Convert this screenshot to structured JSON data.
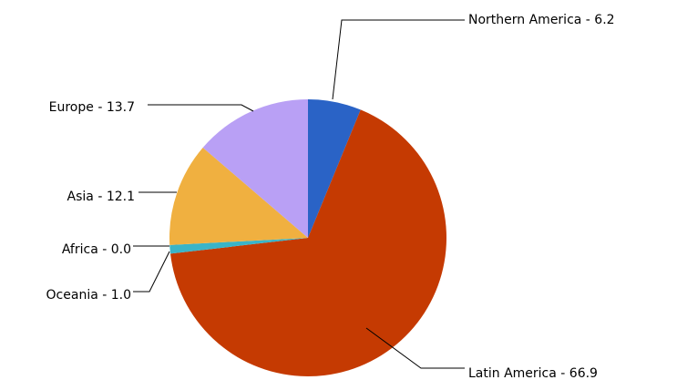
{
  "chart_data": {
    "type": "pie",
    "title": "",
    "slices": [
      {
        "label": "Northern America - 6.2",
        "category": "Northern America",
        "value": 6.2,
        "color": "#2a63c6"
      },
      {
        "label": "Latin America - 66.9",
        "category": "Latin America",
        "value": 66.9,
        "color": "#c53a02"
      },
      {
        "label": "Oceania - 1.0",
        "category": "Oceania",
        "value": 1.0,
        "color": "#3ab4c8"
      },
      {
        "label": "Africa - 0.0",
        "category": "Africa",
        "value": 0.0,
        "color": "#7fcf5a"
      },
      {
        "label": "Asia - 12.1",
        "category": "Asia",
        "value": 12.1,
        "color": "#f0b040"
      },
      {
        "label": "Europe - 13.7",
        "category": "Europe",
        "value": 13.7,
        "color": "#b9a0f5"
      }
    ],
    "start_angle": "12 o'clock",
    "direction": "clockwise",
    "legend": "none",
    "labels": "outside with leader lines"
  }
}
